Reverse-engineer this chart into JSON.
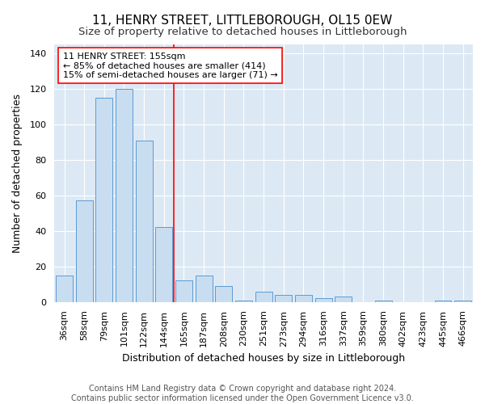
{
  "title": "11, HENRY STREET, LITTLEBOROUGH, OL15 0EW",
  "subtitle": "Size of property relative to detached houses in Littleborough",
  "xlabel": "Distribution of detached houses by size in Littleborough",
  "ylabel": "Number of detached properties",
  "categories": [
    "36sqm",
    "58sqm",
    "79sqm",
    "101sqm",
    "122sqm",
    "144sqm",
    "165sqm",
    "187sqm",
    "208sqm",
    "230sqm",
    "251sqm",
    "273sqm",
    "294sqm",
    "316sqm",
    "337sqm",
    "359sqm",
    "380sqm",
    "402sqm",
    "423sqm",
    "445sqm",
    "466sqm"
  ],
  "values": [
    15,
    57,
    115,
    120,
    91,
    42,
    12,
    15,
    9,
    1,
    6,
    4,
    4,
    2,
    3,
    0,
    1,
    0,
    0,
    1,
    1
  ],
  "bar_color": "#c9ddf0",
  "bar_edge_color": "#5b9bd5",
  "vline_x": 5.5,
  "vline_color": "red",
  "annotation_text": "11 HENRY STREET: 155sqm\n← 85% of detached houses are smaller (414)\n15% of semi-detached houses are larger (71) →",
  "annotation_box_color": "white",
  "annotation_box_edge": "red",
  "ylim": [
    0,
    145
  ],
  "yticks": [
    0,
    20,
    40,
    60,
    80,
    100,
    120,
    140
  ],
  "footer": "Contains HM Land Registry data © Crown copyright and database right 2024.\nContains public sector information licensed under the Open Government Licence v3.0.",
  "fig_background_color": "#ffffff",
  "plot_background_color": "#dce9f5",
  "title_fontsize": 11,
  "subtitle_fontsize": 9.5,
  "axis_label_fontsize": 9,
  "tick_fontsize": 8,
  "annotation_fontsize": 8,
  "footer_fontsize": 7
}
